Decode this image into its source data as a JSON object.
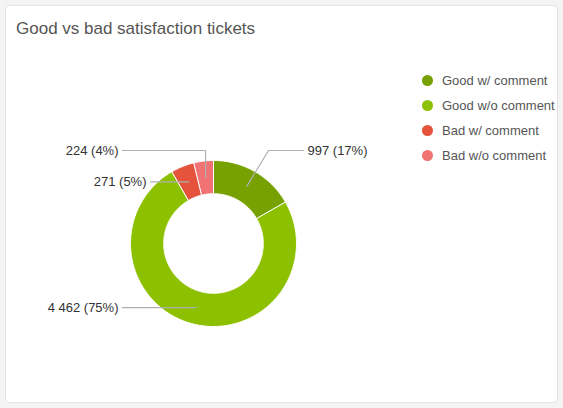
{
  "chart_data": {
    "type": "donut",
    "title": "Good vs bad satisfaction tickets",
    "categories": [
      "Good w/ comment",
      "Good w/o comment",
      "Bad w/ comment",
      "Bad w/o comment"
    ],
    "values": [
      997,
      4462,
      271,
      224
    ],
    "value_labels": [
      "997 (17%)",
      "4 462 (75%)",
      "271 (5%)",
      "224 (4%)"
    ],
    "colors": [
      "#76a100",
      "#8dc100",
      "#e5533d",
      "#f07272"
    ],
    "data_labels": true,
    "legend": "right"
  }
}
